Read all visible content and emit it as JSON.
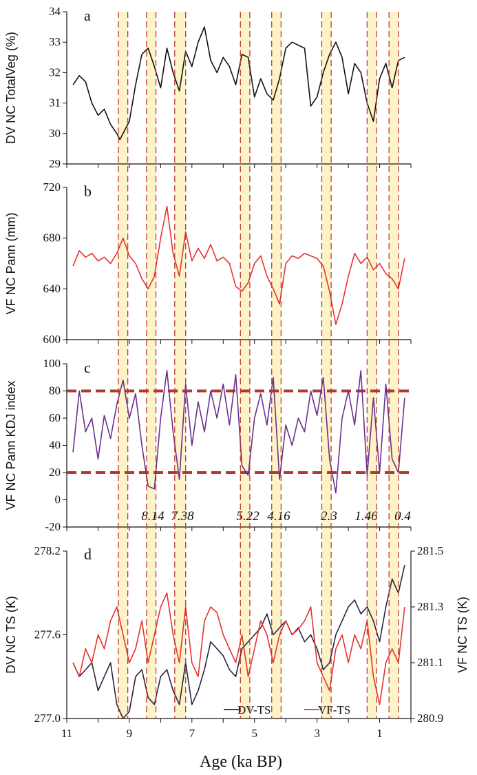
{
  "chart_data": [
    {
      "id": "a",
      "type": "line",
      "panel_label": "a",
      "ylabel": "DV NC TotalVeg (%)",
      "ylim": [
        29,
        34
      ],
      "yticks": [
        29,
        30,
        31,
        32,
        33,
        34
      ],
      "xlim": [
        11,
        0
      ],
      "x_reversed": true,
      "series": [
        {
          "color": "#111111",
          "x": [
            10.8,
            10.6,
            10.4,
            10.2,
            10.0,
            9.8,
            9.6,
            9.4,
            9.3,
            9.2,
            9.0,
            8.8,
            8.6,
            8.4,
            8.2,
            8.0,
            7.8,
            7.6,
            7.4,
            7.2,
            7.0,
            6.8,
            6.6,
            6.4,
            6.2,
            6.0,
            5.8,
            5.6,
            5.4,
            5.2,
            5.0,
            4.8,
            4.6,
            4.4,
            4.2,
            4.0,
            3.8,
            3.6,
            3.4,
            3.2,
            3.0,
            2.8,
            2.6,
            2.4,
            2.2,
            2.0,
            1.8,
            1.6,
            1.4,
            1.2,
            1.0,
            0.8,
            0.6,
            0.4,
            0.2
          ],
          "y": [
            31.6,
            31.9,
            31.7,
            31.0,
            30.6,
            30.8,
            30.3,
            30.0,
            29.8,
            30.0,
            30.4,
            31.6,
            32.6,
            32.8,
            32.2,
            31.5,
            32.8,
            32.0,
            31.4,
            32.7,
            32.2,
            33.0,
            33.5,
            32.4,
            32.0,
            32.5,
            32.2,
            31.6,
            32.6,
            32.5,
            31.2,
            31.8,
            31.3,
            31.1,
            31.8,
            32.8,
            33.0,
            32.9,
            32.8,
            30.9,
            31.2,
            32.0,
            32.6,
            33.0,
            32.5,
            31.3,
            32.3,
            32.0,
            31.0,
            30.4,
            31.8,
            32.3,
            31.5,
            32.4,
            32.5
          ]
        }
      ]
    },
    {
      "id": "b",
      "type": "line",
      "panel_label": "b",
      "ylabel": "VF NC Pann (mm)",
      "ylim": [
        600,
        720
      ],
      "yticks": [
        600,
        640,
        680,
        720
      ],
      "xlim": [
        11,
        0
      ],
      "x_reversed": true,
      "series": [
        {
          "color": "#e8312a",
          "x": [
            10.8,
            10.6,
            10.4,
            10.2,
            10.0,
            9.8,
            9.6,
            9.4,
            9.2,
            9.0,
            8.8,
            8.6,
            8.4,
            8.2,
            8.0,
            7.8,
            7.6,
            7.4,
            7.2,
            7.0,
            6.8,
            6.6,
            6.4,
            6.2,
            6.0,
            5.8,
            5.6,
            5.4,
            5.2,
            5.0,
            4.8,
            4.6,
            4.4,
            4.2,
            4.0,
            3.8,
            3.6,
            3.4,
            3.2,
            3.0,
            2.8,
            2.6,
            2.4,
            2.2,
            2.0,
            1.8,
            1.6,
            1.4,
            1.2,
            1.0,
            0.8,
            0.6,
            0.4,
            0.2
          ],
          "y": [
            658,
            670,
            665,
            668,
            662,
            665,
            660,
            668,
            680,
            666,
            660,
            648,
            640,
            650,
            680,
            705,
            668,
            650,
            685,
            662,
            672,
            664,
            675,
            662,
            665,
            660,
            642,
            638,
            645,
            660,
            666,
            650,
            640,
            628,
            660,
            666,
            664,
            668,
            666,
            664,
            658,
            638,
            612,
            628,
            650,
            668,
            660,
            665,
            655,
            660,
            652,
            648,
            640,
            664
          ]
        }
      ]
    },
    {
      "id": "c",
      "type": "line",
      "panel_label": "c",
      "ylabel": "VF NC Pann KDJ index",
      "ylim": [
        -20,
        100
      ],
      "yticks": [
        -20,
        0,
        20,
        40,
        60,
        80,
        100
      ],
      "xlim": [
        11,
        0
      ],
      "x_reversed": true,
      "thresholds": [
        20,
        80
      ],
      "annotations": [
        "8.14",
        "7.38",
        "5.22",
        "4.16",
        "2.3",
        "1.46",
        "0.4"
      ],
      "series": [
        {
          "color": "#6a2f8f",
          "x": [
            10.8,
            10.6,
            10.4,
            10.2,
            10.0,
            9.8,
            9.6,
            9.4,
            9.2,
            9.0,
            8.8,
            8.6,
            8.4,
            8.2,
            8.0,
            7.8,
            7.6,
            7.4,
            7.2,
            7.0,
            6.8,
            6.6,
            6.4,
            6.2,
            6.0,
            5.8,
            5.6,
            5.4,
            5.2,
            5.0,
            4.8,
            4.6,
            4.4,
            4.2,
            4.0,
            3.8,
            3.6,
            3.4,
            3.2,
            3.0,
            2.8,
            2.6,
            2.4,
            2.2,
            2.0,
            1.8,
            1.6,
            1.4,
            1.2,
            1.0,
            0.8,
            0.6,
            0.4,
            0.2
          ],
          "y": [
            35,
            80,
            50,
            60,
            30,
            62,
            45,
            70,
            88,
            60,
            78,
            40,
            10,
            8,
            60,
            95,
            50,
            15,
            85,
            40,
            72,
            50,
            80,
            60,
            85,
            55,
            92,
            25,
            18,
            60,
            78,
            55,
            90,
            15,
            55,
            40,
            60,
            50,
            80,
            62,
            90,
            30,
            5,
            60,
            80,
            55,
            95,
            18,
            75,
            20,
            85,
            30,
            20,
            75
          ]
        }
      ]
    },
    {
      "id": "d",
      "type": "line",
      "panel_label": "d",
      "ylabel": "DV NC TS (K)",
      "ylim": [
        277.0,
        278.2
      ],
      "yticks": [
        "277.0",
        "277.6",
        "278.2"
      ],
      "y2label": "VF NC TS (K)",
      "y2lim": [
        280.9,
        281.5
      ],
      "y2ticks": [
        "280.9",
        "281.1",
        "281.3",
        "281.5"
      ],
      "xlim": [
        11,
        0
      ],
      "x_reversed": true,
      "xticks": [
        "11",
        "9",
        "7",
        "5",
        "3",
        "1"
      ],
      "xlabel": "Age (ka BP)",
      "series": [
        {
          "name": "DV-TS",
          "color": "#2a2240",
          "axis": "left",
          "x": [
            10.8,
            10.6,
            10.4,
            10.2,
            10.0,
            9.8,
            9.6,
            9.4,
            9.2,
            9.0,
            8.8,
            8.6,
            8.4,
            8.2,
            8.0,
            7.8,
            7.6,
            7.4,
            7.2,
            7.0,
            6.8,
            6.6,
            6.4,
            6.2,
            6.0,
            5.8,
            5.6,
            5.4,
            5.2,
            5.0,
            4.8,
            4.6,
            4.4,
            4.2,
            4.0,
            3.8,
            3.6,
            3.4,
            3.2,
            3.0,
            2.8,
            2.6,
            2.4,
            2.2,
            2.0,
            1.8,
            1.6,
            1.4,
            1.2,
            1.0,
            0.8,
            0.6,
            0.4,
            0.2
          ],
          "y": [
            277.4,
            277.3,
            277.35,
            277.4,
            277.2,
            277.3,
            277.4,
            277.1,
            277.0,
            277.05,
            277.3,
            277.35,
            277.15,
            277.1,
            277.3,
            277.35,
            277.2,
            277.1,
            277.4,
            277.1,
            277.2,
            277.35,
            277.55,
            277.5,
            277.45,
            277.35,
            277.3,
            277.5,
            277.55,
            277.6,
            277.65,
            277.75,
            277.6,
            277.65,
            277.7,
            277.6,
            277.65,
            277.55,
            277.6,
            277.5,
            277.35,
            277.4,
            277.6,
            277.7,
            277.8,
            277.85,
            277.75,
            277.8,
            277.7,
            277.55,
            277.8,
            278.0,
            277.9,
            278.1
          ]
        },
        {
          "name": "VF-TS",
          "color": "#e8312a",
          "axis": "right",
          "x": [
            10.8,
            10.6,
            10.4,
            10.2,
            10.0,
            9.8,
            9.6,
            9.4,
            9.2,
            9.0,
            8.8,
            8.6,
            8.4,
            8.2,
            8.0,
            7.8,
            7.6,
            7.4,
            7.2,
            7.0,
            6.8,
            6.6,
            6.4,
            6.2,
            6.0,
            5.8,
            5.6,
            5.4,
            5.2,
            5.0,
            4.8,
            4.6,
            4.4,
            4.2,
            4.0,
            3.8,
            3.6,
            3.4,
            3.2,
            3.0,
            2.8,
            2.6,
            2.4,
            2.2,
            2.0,
            1.8,
            1.6,
            1.4,
            1.2,
            1.0,
            0.8,
            0.6,
            0.4,
            0.2
          ],
          "y": [
            281.1,
            281.05,
            281.15,
            281.1,
            281.2,
            281.15,
            281.25,
            281.3,
            281.2,
            281.1,
            281.15,
            281.25,
            281.1,
            281.2,
            281.3,
            281.35,
            281.2,
            281.1,
            281.3,
            281.1,
            281.05,
            281.25,
            281.3,
            281.28,
            281.2,
            281.15,
            281.1,
            281.2,
            281.05,
            281.15,
            281.25,
            281.2,
            281.1,
            281.2,
            281.25,
            281.2,
            281.22,
            281.25,
            281.3,
            281.1,
            281.05,
            281.0,
            281.15,
            281.2,
            281.1,
            281.2,
            281.15,
            281.25,
            281.05,
            280.95,
            281.1,
            281.15,
            281.1,
            281.3
          ]
        }
      ]
    }
  ],
  "highlight_bands": [
    [
      9.35,
      9.05
    ],
    [
      8.45,
      8.15
    ],
    [
      7.55,
      7.2
    ],
    [
      5.45,
      5.15
    ],
    [
      4.45,
      4.15
    ],
    [
      2.85,
      2.55
    ],
    [
      1.4,
      1.1
    ],
    [
      0.7,
      0.4
    ]
  ],
  "colors": {
    "band_fill": "#fdf3c8",
    "band_edge": "#c0392b",
    "threshold": "#b03a2e"
  }
}
